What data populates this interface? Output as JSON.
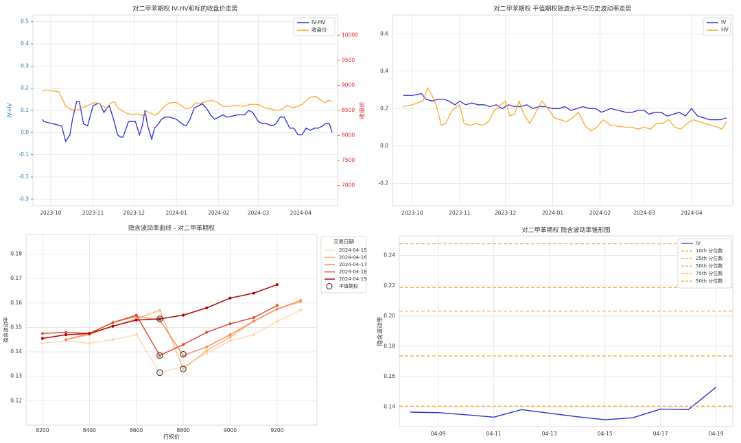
{
  "chart_data": [
    {
      "type": "line",
      "title": "对二甲苯期权 IV-HV和标的收盘价走势",
      "ylabel": "IV-HV",
      "y2label": "收盘价",
      "ylim": [
        -0.33,
        0.53
      ],
      "y2lim": [
        6600,
        10400
      ],
      "yticks": [
        -0.3,
        -0.2,
        -0.1,
        0.0,
        0.1,
        0.2,
        0.3,
        0.4,
        0.5
      ],
      "y2ticks": [
        7000,
        7500,
        8000,
        8500,
        9000,
        9500,
        10000
      ],
      "xlim": [
        "2023-09-18",
        "2024-04-28"
      ],
      "xtick_labels": [
        "2023-10",
        "2023-11",
        "2023-12",
        "2024-01",
        "2024-02",
        "2024-03",
        "2024-04"
      ],
      "xtick_dates": [
        "2023-10-01",
        "2023-11-01",
        "2023-12-01",
        "2024-01-01",
        "2024-02-01",
        "2024-03-01",
        "2024-04-01"
      ],
      "legend": "top-right",
      "grid": true,
      "series": [
        {
          "name": "IV-HV",
          "color": "#2a2ad8",
          "axis": "left",
          "x": [
            "2023-09-25",
            "2023-09-26",
            "2023-10-09",
            "2023-10-12",
            "2023-10-15",
            "2023-10-17",
            "2023-10-20",
            "2023-10-22",
            "2023-10-25",
            "2023-10-28",
            "2023-11-01",
            "2023-11-04",
            "2023-11-06",
            "2023-11-09",
            "2023-11-11",
            "2023-11-13",
            "2023-11-16",
            "2023-11-19",
            "2023-11-21",
            "2023-11-23",
            "2023-11-27",
            "2023-11-30",
            "2023-12-02",
            "2023-12-05",
            "2023-12-07",
            "2023-12-09",
            "2023-12-11",
            "2023-12-14",
            "2023-12-16",
            "2023-12-19",
            "2023-12-21",
            "2023-12-24",
            "2023-12-27",
            "2024-01-01",
            "2024-01-05",
            "2024-01-08",
            "2024-01-11",
            "2024-01-14",
            "2024-01-17",
            "2024-01-20",
            "2024-01-23",
            "2024-01-26",
            "2024-01-29",
            "2024-02-01",
            "2024-02-04",
            "2024-02-07",
            "2024-02-15",
            "2024-02-20",
            "2024-02-23",
            "2024-02-26",
            "2024-03-01",
            "2024-03-04",
            "2024-03-07",
            "2024-03-11",
            "2024-03-14",
            "2024-03-17",
            "2024-03-20",
            "2024-03-24",
            "2024-03-27",
            "2024-03-30",
            "2024-04-02",
            "2024-04-05",
            "2024-04-08",
            "2024-04-11",
            "2024-04-14",
            "2024-04-17",
            "2024-04-19",
            "2024-04-22",
            "2024-04-24"
          ],
          "y": [
            0.06,
            0.05,
            0.03,
            -0.04,
            -0.01,
            0.06,
            0.14,
            0.14,
            0.04,
            0.03,
            0.12,
            0.13,
            0.13,
            0.09,
            0.11,
            0.12,
            0.06,
            -0.01,
            -0.02,
            -0.02,
            0.05,
            0.05,
            0.05,
            -0.01,
            0.03,
            0.1,
            0.03,
            -0.03,
            0.02,
            0.04,
            0.06,
            0.07,
            0.07,
            0.06,
            0.04,
            0.03,
            0.06,
            0.11,
            0.12,
            0.13,
            0.11,
            0.08,
            0.06,
            0.07,
            0.08,
            0.07,
            0.08,
            0.08,
            0.1,
            0.09,
            0.05,
            0.04,
            0.04,
            0.03,
            0.04,
            0.07,
            0.07,
            0.02,
            0.02,
            -0.01,
            -0.01,
            0.02,
            0.01,
            0.02,
            0.02,
            0.03,
            0.04,
            0.04,
            0.0
          ]
        },
        {
          "name": "收盘价",
          "color": "#ffa726",
          "axis": "right",
          "x": [
            "2023-09-25",
            "2023-09-27",
            "2023-10-07",
            "2023-10-10",
            "2023-10-12",
            "2023-10-16",
            "2023-10-20",
            "2023-10-24",
            "2023-10-27",
            "2023-11-01",
            "2023-11-04",
            "2023-11-08",
            "2023-11-11",
            "2023-11-14",
            "2023-11-17",
            "2023-11-19",
            "2023-11-22",
            "2023-11-25",
            "2023-11-29",
            "2023-12-03",
            "2023-12-07",
            "2023-12-10",
            "2023-12-13",
            "2023-12-16",
            "2023-12-19",
            "2023-12-23",
            "2023-12-27",
            "2024-01-01",
            "2024-01-04",
            "2024-01-08",
            "2024-01-12",
            "2024-01-15",
            "2024-01-19",
            "2024-01-23",
            "2024-01-27",
            "2024-01-31",
            "2024-02-04",
            "2024-02-08",
            "2024-02-15",
            "2024-02-19",
            "2024-02-24",
            "2024-02-28",
            "2024-03-02",
            "2024-03-06",
            "2024-03-10",
            "2024-03-14",
            "2024-03-18",
            "2024-03-22",
            "2024-03-26",
            "2024-03-30",
            "2024-04-02",
            "2024-04-05",
            "2024-04-08",
            "2024-04-12",
            "2024-04-16",
            "2024-04-19",
            "2024-04-21",
            "2024-04-24"
          ],
          "y": [
            8880,
            8910,
            8870,
            8700,
            8580,
            8520,
            8500,
            8550,
            8580,
            8650,
            8650,
            8580,
            8550,
            8650,
            8670,
            8550,
            8500,
            8450,
            8420,
            8430,
            8400,
            8480,
            8450,
            8400,
            8450,
            8580,
            8650,
            8660,
            8610,
            8530,
            8560,
            8650,
            8640,
            8680,
            8700,
            8660,
            8580,
            8580,
            8600,
            8580,
            8620,
            8620,
            8610,
            8550,
            8530,
            8500,
            8520,
            8600,
            8550,
            8580,
            8620,
            8700,
            8760,
            8780,
            8700,
            8650,
            8700,
            8680
          ]
        }
      ]
    },
    {
      "type": "line",
      "title": "对二甲苯期权 平值期权隐波水平与历史波动率走势",
      "ylim": [
        -0.32,
        0.7
      ],
      "yticks": [
        -0.2,
        0.0,
        0.2,
        0.4,
        0.6
      ],
      "xlim": [
        "2023-09-18",
        "2024-04-28"
      ],
      "xtick_labels": [
        "2023-10",
        "2023-11",
        "2023-12",
        "2024-01",
        "2024-02",
        "2024-03",
        "2024-04"
      ],
      "xtick_dates": [
        "2023-10-01",
        "2023-11-01",
        "2023-12-01",
        "2024-01-01",
        "2024-02-01",
        "2024-03-01",
        "2024-04-01"
      ],
      "legend": "top-right",
      "grid": true,
      "series": [
        {
          "name": "IV",
          "color": "#2a2ad8",
          "x": [
            "2023-09-25",
            "2023-10-01",
            "2023-10-07",
            "2023-10-10",
            "2023-10-14",
            "2023-10-18",
            "2023-10-22",
            "2023-10-25",
            "2023-10-29",
            "2023-11-01",
            "2023-11-05",
            "2023-11-09",
            "2023-11-13",
            "2023-11-17",
            "2023-11-21",
            "2023-11-25",
            "2023-11-29",
            "2023-12-03",
            "2023-12-07",
            "2023-12-11",
            "2023-12-15",
            "2023-12-19",
            "2023-12-23",
            "2023-12-27",
            "2024-01-01",
            "2024-01-05",
            "2024-01-09",
            "2024-01-13",
            "2024-01-17",
            "2024-01-21",
            "2024-01-25",
            "2024-01-29",
            "2024-02-02",
            "2024-02-08",
            "2024-02-18",
            "2024-02-22",
            "2024-02-26",
            "2024-03-01",
            "2024-03-04",
            "2024-03-08",
            "2024-03-12",
            "2024-03-16",
            "2024-03-20",
            "2024-03-24",
            "2024-03-28",
            "2024-04-01",
            "2024-04-05",
            "2024-04-09",
            "2024-04-13",
            "2024-04-17",
            "2024-04-20",
            "2024-04-24"
          ],
          "y": [
            0.27,
            0.27,
            0.28,
            0.25,
            0.24,
            0.25,
            0.25,
            0.24,
            0.22,
            0.24,
            0.22,
            0.23,
            0.22,
            0.22,
            0.21,
            0.22,
            0.2,
            0.22,
            0.21,
            0.21,
            0.22,
            0.2,
            0.21,
            0.21,
            0.2,
            0.2,
            0.21,
            0.19,
            0.2,
            0.21,
            0.2,
            0.2,
            0.18,
            0.2,
            0.18,
            0.18,
            0.19,
            0.19,
            0.17,
            0.18,
            0.18,
            0.16,
            0.17,
            0.18,
            0.16,
            0.2,
            0.16,
            0.15,
            0.14,
            0.14,
            0.14,
            0.15
          ]
        },
        {
          "name": "HV",
          "color": "#ffa726",
          "x": [
            "2023-09-25",
            "2023-10-01",
            "2023-10-08",
            "2023-10-11",
            "2023-10-14",
            "2023-10-17",
            "2023-10-20",
            "2023-10-23",
            "2023-10-27",
            "2023-11-01",
            "2023-11-04",
            "2023-11-08",
            "2023-11-12",
            "2023-11-16",
            "2023-11-20",
            "2023-11-24",
            "2023-11-28",
            "2023-12-01",
            "2023-12-04",
            "2023-12-07",
            "2023-12-10",
            "2023-12-13",
            "2023-12-17",
            "2023-12-21",
            "2023-12-25",
            "2023-12-29",
            "2024-01-02",
            "2024-01-06",
            "2024-01-10",
            "2024-01-14",
            "2024-01-18",
            "2024-01-22",
            "2024-01-26",
            "2024-01-30",
            "2024-02-03",
            "2024-02-08",
            "2024-02-18",
            "2024-02-22",
            "2024-02-26",
            "2024-03-01",
            "2024-03-05",
            "2024-03-09",
            "2024-03-13",
            "2024-03-17",
            "2024-03-21",
            "2024-03-25",
            "2024-03-29",
            "2024-04-02",
            "2024-04-06",
            "2024-04-10",
            "2024-04-14",
            "2024-04-18",
            "2024-04-21",
            "2024-04-24"
          ],
          "y": [
            0.21,
            0.22,
            0.24,
            0.31,
            0.27,
            0.21,
            0.11,
            0.12,
            0.19,
            0.22,
            0.12,
            0.11,
            0.12,
            0.11,
            0.13,
            0.19,
            0.22,
            0.24,
            0.16,
            0.17,
            0.24,
            0.17,
            0.12,
            0.18,
            0.24,
            0.2,
            0.15,
            0.14,
            0.13,
            0.15,
            0.18,
            0.11,
            0.08,
            0.1,
            0.14,
            0.11,
            0.1,
            0.1,
            0.09,
            0.1,
            0.09,
            0.12,
            0.12,
            0.14,
            0.1,
            0.09,
            0.12,
            0.14,
            0.13,
            0.12,
            0.11,
            0.1,
            0.09,
            0.13
          ]
        }
      ]
    },
    {
      "type": "line",
      "title": "隐含波动率曲线 - 对二甲苯期权",
      "xlabel": "行权价",
      "ylabel": "隐含波动率",
      "xlim": [
        8130,
        9370
      ],
      "ylim": [
        0.11,
        0.188
      ],
      "xticks": [
        8200,
        8400,
        8600,
        8800,
        9000,
        9200
      ],
      "yticks": [
        0.12,
        0.13,
        0.14,
        0.15,
        0.16,
        0.17,
        0.18
      ],
      "legend_title": "交易日期",
      "legend": "outside-right",
      "grid": true,
      "atm_label": "平值期权",
      "series": [
        {
          "name": "2024-04-15",
          "color": "#fdd9b4",
          "x": [
            8200,
            8300,
            8400,
            8500,
            8600,
            8700,
            8800,
            8900,
            9000,
            9100,
            9200,
            9300
          ],
          "y": [
            0.1435,
            0.1445,
            0.1435,
            0.145,
            0.147,
            0.1315,
            0.134,
            0.1395,
            0.1445,
            0.147,
            0.1525,
            0.157
          ],
          "atm": {
            "x": 8700,
            "y": 0.1315
          }
        },
        {
          "name": "2024-04-16",
          "color": "#fdbb84",
          "x": [
            8300,
            8400,
            8500,
            8600,
            8700,
            8800,
            8900,
            9000,
            9100,
            9200,
            9300
          ],
          "y": [
            0.145,
            0.147,
            0.1505,
            0.1535,
            0.157,
            0.133,
            0.1405,
            0.146,
            0.1525,
            0.1575,
            0.1605
          ],
          "atm": {
            "x": 8800,
            "y": 0.133
          }
        },
        {
          "name": "2024-04-17",
          "color": "#fc8d59",
          "x": [
            8300,
            8400,
            8500,
            8600,
            8700,
            8800,
            8900,
            9000,
            9100,
            9200,
            9300
          ],
          "y": [
            0.145,
            0.1475,
            0.152,
            0.1545,
            0.153,
            0.1385,
            0.142,
            0.147,
            0.1525,
            0.1575,
            0.161
          ],
          "atm": {
            "x": 8800,
            "y": 0.139
          }
        },
        {
          "name": "2024-04-18",
          "color": "#e34a33",
          "x": [
            8200,
            8300,
            8400,
            8500,
            8600,
            8700,
            8800,
            8900,
            9000,
            9100,
            9200
          ],
          "y": [
            0.1475,
            0.148,
            0.1475,
            0.152,
            0.155,
            0.1385,
            0.143,
            0.148,
            0.1515,
            0.154,
            0.159
          ],
          "atm": {
            "x": 8700,
            "y": 0.1385
          }
        },
        {
          "name": "2024-04-19",
          "color": "#b30000",
          "x": [
            8200,
            8300,
            8400,
            8500,
            8600,
            8700,
            8800,
            8900,
            9000,
            9100,
            9200
          ],
          "y": [
            0.1455,
            0.147,
            0.1475,
            0.1505,
            0.153,
            0.1535,
            0.155,
            0.158,
            0.162,
            0.164,
            0.1675
          ],
          "atm": {
            "x": 8700,
            "y": 0.1535
          }
        }
      ]
    },
    {
      "type": "line",
      "title": "对二甲苯期权 隐含波动率锥形图",
      "ylabel": "隐含波动率",
      "ylim": [
        0.127,
        0.253
      ],
      "yticks": [
        0.14,
        0.16,
        0.18,
        0.2,
        0.22,
        0.24
      ],
      "xlim": [
        "04-07.6",
        "04-19.6"
      ],
      "xtick_labels": [
        "04-09",
        "04-11",
        "04-13",
        "04-15",
        "04-17",
        "04-19"
      ],
      "xtick_days": [
        9,
        11,
        13,
        15,
        17,
        19
      ],
      "legend": "top-right",
      "grid": true,
      "series": [
        {
          "name": "IV",
          "color": "#2a2ad8",
          "x": [
            8,
            9,
            10,
            11,
            12,
            13,
            14,
            15,
            16,
            17,
            18,
            19
          ],
          "y": [
            0.1365,
            0.1362,
            0.1348,
            0.1332,
            0.1382,
            0.1358,
            0.1335,
            0.1315,
            0.1328,
            0.1385,
            0.1382,
            0.153
          ]
        },
        {
          "name": "10th 分位数",
          "color": "#f5a623",
          "value": 0.1405
        },
        {
          "name": "25th 分位数",
          "color": "#f5a623",
          "value": 0.1737
        },
        {
          "name": "50th 分位数",
          "color": "#f5a623",
          "value": 0.2033
        },
        {
          "name": "75th 分位数",
          "color": "#f5a623",
          "value": 0.2188
        },
        {
          "name": "90th 分位数",
          "color": "#f5a623",
          "value": 0.2478
        }
      ]
    }
  ]
}
